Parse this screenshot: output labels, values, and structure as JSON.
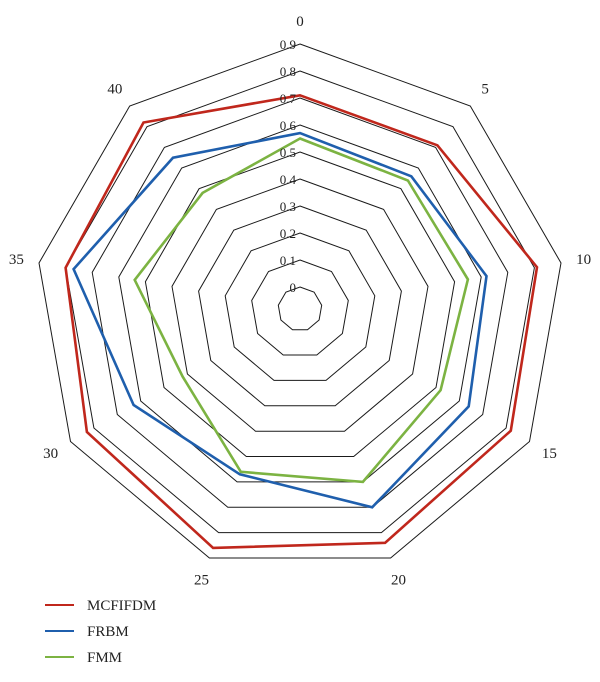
{
  "chart_data": {
    "type": "radar",
    "categories": [
      "0",
      "5",
      "10",
      "15",
      "20",
      "25",
      "30",
      "35",
      "40"
    ],
    "radial_ticks": [
      "0",
      "0.1",
      "0.2",
      "0.3",
      "0.4",
      "0.5",
      "0.6",
      "0.7",
      "0.8",
      "0.9"
    ],
    "rlim": [
      0,
      0.9
    ],
    "grid": true,
    "legend_position": "bottom-left",
    "series": [
      {
        "name": "MCFIFDM",
        "color": "#c0271c",
        "values": [
          0.71,
          0.71,
          0.81,
          0.82,
          0.84,
          0.86,
          0.83,
          0.8,
          0.82
        ]
      },
      {
        "name": "FRBM",
        "color": "#1f5fad",
        "values": [
          0.57,
          0.56,
          0.62,
          0.64,
          0.7,
          0.57,
          0.63,
          0.77,
          0.65
        ]
      },
      {
        "name": "FMM",
        "color": "#7cb342",
        "values": [
          0.55,
          0.54,
          0.55,
          0.52,
          0.6,
          0.56,
          0.42,
          0.54,
          0.48
        ]
      }
    ]
  }
}
